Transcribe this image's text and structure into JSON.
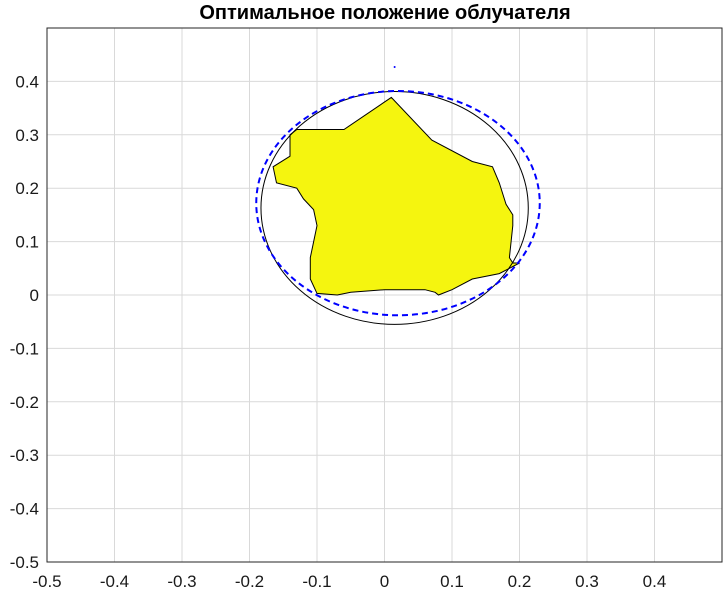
{
  "chart_data": {
    "type": "area",
    "title": "Оптимальное положение облучателя",
    "xlabel": "",
    "ylabel": "",
    "xlim": [
      -0.5,
      0.5
    ],
    "ylim": [
      -0.5,
      0.5
    ],
    "xticks": [
      -0.5,
      -0.4,
      -0.3,
      -0.2,
      -0.1,
      0,
      0.1,
      0.2,
      0.3,
      0.4
    ],
    "yticks": [
      -0.5,
      -0.4,
      -0.3,
      -0.2,
      -0.1,
      0,
      0.1,
      0.2,
      0.3,
      0.4
    ],
    "grid": true,
    "legend": "none",
    "series": [
      {
        "kind": "filled-polygon",
        "color": "#f5f50f",
        "edge_color": "#000000",
        "x": [
          0.01,
          0.07,
          0.13,
          0.16,
          0.17,
          0.18,
          0.19,
          0.19,
          0.185,
          0.19,
          0.2,
          0.17,
          0.13,
          0.1,
          0.08,
          0.075,
          0.06,
          0.0,
          -0.05,
          -0.07,
          -0.1,
          -0.11,
          -0.11,
          -0.1,
          -0.105,
          -0.12,
          -0.13,
          -0.16,
          -0.165,
          -0.14,
          -0.14,
          -0.13,
          -0.06
        ],
        "y": [
          0.37,
          0.29,
          0.25,
          0.24,
          0.21,
          0.17,
          0.15,
          0.13,
          0.07,
          0.06,
          0.06,
          0.04,
          0.03,
          0.01,
          0.0,
          0.005,
          0.01,
          0.01,
          0.005,
          0.0,
          0.003,
          0.03,
          0.07,
          0.13,
          0.16,
          0.18,
          0.2,
          0.21,
          0.24,
          0.26,
          0.3,
          0.31,
          0.31
        ]
      },
      {
        "kind": "ellipse",
        "style": "solid",
        "color": "#000000",
        "center": [
          0.015,
          0.163
        ],
        "radii": [
          0.198,
          0.218
        ]
      },
      {
        "kind": "ellipse",
        "style": "dashed",
        "color": "#0000ff",
        "center": [
          0.02,
          0.172
        ],
        "radii": [
          0.21,
          0.21
        ]
      },
      {
        "kind": "point",
        "color": "#0000ff",
        "x": [
          0.015
        ],
        "y": [
          0.427
        ]
      }
    ]
  }
}
